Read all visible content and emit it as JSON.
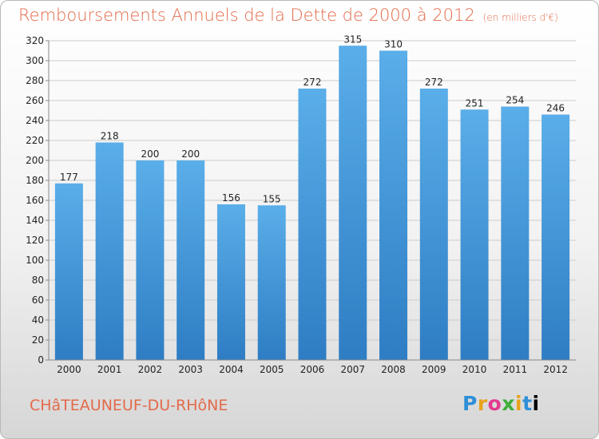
{
  "header": {
    "title": "Remboursements Annuels de la Dette de 2000 à 2012",
    "unit": "(en milliers d'€)"
  },
  "footer": {
    "city": "CHâTEAUNEUF-DU-RHôNE",
    "logo": "Proxiti"
  },
  "colors": {
    "bar_top": "#5aaee9",
    "bar_bottom": "#2e7dc4",
    "title": "#e36a4a",
    "grid": "#cccccc"
  },
  "chart_data": {
    "type": "bar",
    "categories": [
      "2000",
      "2001",
      "2002",
      "2003",
      "2004",
      "2005",
      "2006",
      "2007",
      "2008",
      "2009",
      "2010",
      "2011",
      "2012"
    ],
    "values": [
      177,
      218,
      200,
      200,
      156,
      155,
      272,
      315,
      310,
      272,
      251,
      254,
      246
    ],
    "title": "Remboursements Annuels de la Dette de 2000 à 2012",
    "ylim": [
      0,
      320
    ],
    "yticks": [
      0,
      20,
      40,
      60,
      80,
      100,
      120,
      140,
      160,
      180,
      200,
      220,
      240,
      260,
      280,
      300,
      320
    ],
    "grid": true,
    "data_labels": true
  }
}
